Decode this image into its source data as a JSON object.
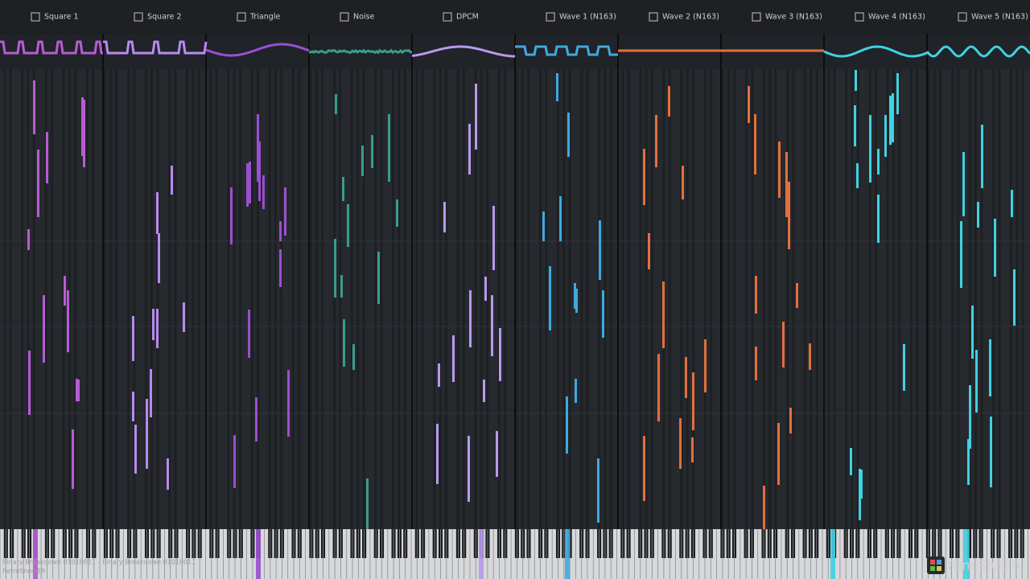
{
  "channels": [
    "Square 1",
    "Square 2",
    "Triangle",
    "Noise",
    "DPCM",
    "Wave 1 (N163)",
    "Wave 2 (N163)",
    "Wave 3 (N163)",
    "Wave 4 (N163)",
    "Wave 5 (N163)"
  ],
  "footer": {
    "song": "Binary Breakdown 01010011 - Binary Breakdown 01010011",
    "author": "RetroSnow19"
  },
  "logo": "FamiStudio"
}
